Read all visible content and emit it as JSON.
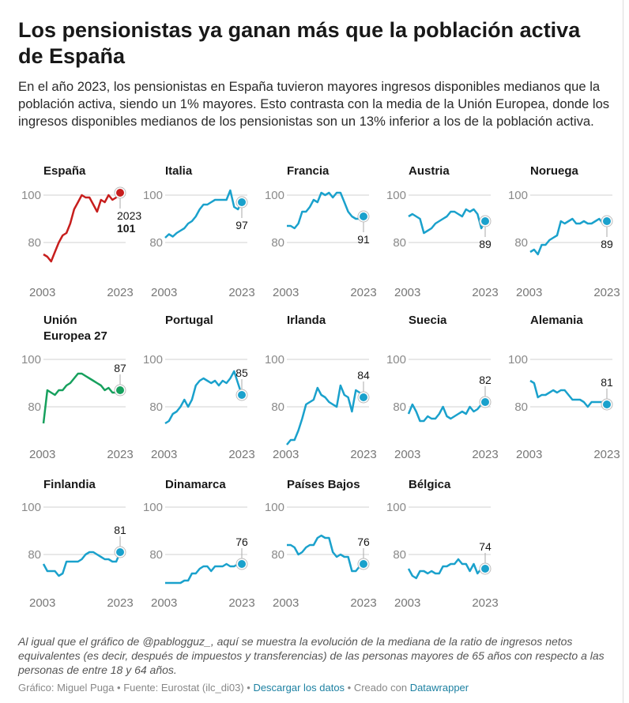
{
  "header": {
    "title": "Los pensionistas ya ganan más que la población activa de España",
    "subtitle": "En el año 2023, los pensionistas en España tuvieron mayores ingresos disponibles medianos que la población activa, siendo un 1% mayores. Esto contrasta con la media de la Unión Europea, donde los ingresos disponibles medianos de los pensionistas son un 13% inferior a los de la población activa."
  },
  "notes": "Al igual que el gráfico de @pablogguz_, aquí se muestra la evolución de la mediana de la ratio de ingresos netos equivalentes (es decir, después de impuestos y transferencias) de las personas mayores de 65 años con respecto a las personas de entre 18 y 64 años.",
  "footer": {
    "credit": "Gráfico: Miguel Puga",
    "sep": " • ",
    "source": "Fuente: Eurostat (ilc_di03)",
    "download_link": "Descargar los datos",
    "created_with": "Creado con",
    "tool_link": "Datawrapper"
  },
  "colors": {
    "spain": "#c71e1d",
    "eu": "#16a05d",
    "other": "#1aa1cc",
    "grid": "#e0e0e0",
    "axis_text": "#8a8a8a"
  },
  "chart_data": {
    "type": "line",
    "layout": "small-multiples",
    "x": [
      2003,
      2004,
      2005,
      2006,
      2007,
      2008,
      2009,
      2010,
      2011,
      2012,
      2013,
      2014,
      2015,
      2016,
      2017,
      2018,
      2019,
      2020,
      2021,
      2022,
      2023
    ],
    "x_ticks": [
      "2003",
      "2023"
    ],
    "y_ticks": [
      80,
      100
    ],
    "grid": true,
    "highlight_year_label": "2023",
    "panels": [
      {
        "name": "España",
        "color_key": "spain",
        "end_label": "101",
        "values": [
          75,
          74,
          72,
          76,
          80,
          83,
          84,
          88,
          94,
          97,
          100,
          99,
          99,
          96,
          93,
          98,
          97,
          100,
          98,
          99,
          101
        ]
      },
      {
        "name": "Italia",
        "color_key": "other",
        "end_label": "97",
        "values": [
          82,
          83.5,
          82.5,
          84,
          85,
          86,
          88,
          89,
          91,
          94,
          96,
          96,
          97,
          98,
          98,
          98,
          98,
          102,
          95,
          94,
          97
        ]
      },
      {
        "name": "Francia",
        "color_key": "other",
        "end_label": "91",
        "values": [
          87,
          87,
          86,
          88,
          93,
          93,
          95,
          98,
          97,
          101,
          100,
          101,
          99,
          101,
          101,
          97,
          93,
          91,
          90,
          90,
          91
        ]
      },
      {
        "name": "Austria",
        "color_key": "other",
        "end_label": "89",
        "values": [
          91,
          92,
          91,
          90,
          84,
          85,
          86,
          88,
          89,
          90,
          91,
          93,
          93,
          92,
          91,
          94,
          93,
          94,
          92,
          86,
          89
        ]
      },
      {
        "name": "Noruega",
        "color_key": "other",
        "end_label": "89",
        "values": [
          76,
          77,
          75,
          79,
          79,
          81,
          82,
          83,
          89,
          88,
          89,
          90,
          88,
          88,
          89,
          88,
          88,
          89,
          90,
          88,
          89
        ]
      },
      {
        "name": "Unión Europea 27",
        "color_key": "eu",
        "end_label": "87",
        "values": [
          73,
          87,
          86,
          85,
          87,
          87,
          89,
          90,
          92,
          94,
          94,
          93,
          92,
          91,
          90,
          89,
          87,
          88,
          86,
          86,
          87
        ]
      },
      {
        "name": "Portugal",
        "color_key": "other",
        "end_label": "85",
        "values": [
          73,
          74,
          77,
          78,
          80,
          83,
          80,
          83,
          89,
          91,
          92,
          91,
          90,
          91,
          89,
          91,
          90,
          92,
          95,
          90,
          85
        ]
      },
      {
        "name": "Irlanda",
        "color_key": "other",
        "end_label": "84",
        "values": [
          64,
          66,
          66,
          70,
          75,
          81,
          82,
          83,
          88,
          85,
          84,
          82,
          81,
          80,
          89,
          85,
          84,
          78,
          87,
          86,
          84
        ]
      },
      {
        "name": "Suecia",
        "color_key": "other",
        "end_label": "82",
        "values": [
          77,
          81,
          78,
          74,
          74,
          76,
          75,
          75,
          77,
          80,
          76,
          75,
          76,
          77,
          78,
          77,
          80,
          78,
          79,
          81,
          82
        ]
      },
      {
        "name": "Alemania",
        "color_key": "other",
        "end_label": "81",
        "values": [
          91,
          90,
          84,
          85,
          85,
          86,
          87,
          86,
          87,
          87,
          85,
          83,
          83,
          83,
          82,
          80,
          82,
          82,
          82,
          82,
          81
        ]
      },
      {
        "name": "Finlandia",
        "color_key": "other",
        "end_label": "81",
        "values": [
          76,
          73,
          73,
          73,
          71,
          72,
          77,
          77,
          77,
          77,
          78,
          80,
          81,
          81,
          80,
          79,
          78,
          78,
          77,
          77,
          81
        ]
      },
      {
        "name": "Dinamarca",
        "color_key": "other",
        "end_label": "76",
        "values": [
          68,
          68,
          68,
          68,
          68,
          69,
          69,
          72,
          72,
          74,
          75,
          75,
          73,
          75,
          75,
          75,
          76,
          75,
          75,
          76,
          76
        ]
      },
      {
        "name": "Países Bajos",
        "color_key": "other",
        "end_label": "76",
        "values": [
          84,
          84,
          83,
          80,
          81,
          83,
          84,
          84,
          87,
          88,
          87,
          87,
          81,
          79,
          80,
          79,
          79,
          73,
          73,
          75,
          76
        ]
      },
      {
        "name": "Bélgica",
        "color_key": "other",
        "end_label": "74",
        "values": [
          74,
          71,
          70,
          73,
          73,
          72,
          73,
          72,
          72,
          75,
          75,
          76,
          76,
          78,
          76,
          76,
          73,
          76,
          72,
          74,
          74
        ]
      }
    ]
  }
}
